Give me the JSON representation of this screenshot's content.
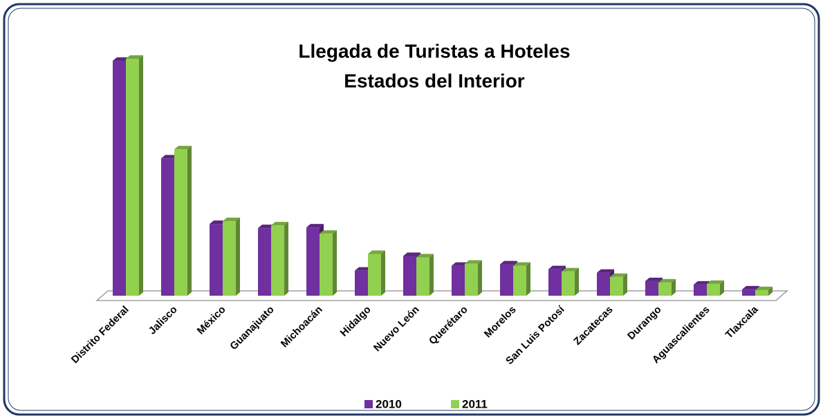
{
  "chart_data": {
    "type": "bar3d",
    "title": [
      "Llegada de Turistas a Hoteles",
      "Estados del Interior"
    ],
    "categories": [
      "Distrito Federal",
      "Jalisco",
      "México",
      "Guanajuato",
      "Michoacán",
      "Hidalgo",
      "Nuevo León",
      "Querétaro",
      "Morelos",
      "San Luis Potosí",
      "Zacatecas",
      "Durango",
      "Aguascalientes",
      "Tlaxcala"
    ],
    "series": [
      {
        "name": "2010",
        "color": "#7030a0",
        "values": [
          337,
          197,
          103,
          97,
          98,
          36,
          57,
          43,
          45,
          38,
          33,
          21,
          16,
          9
        ]
      },
      {
        "name": "2011",
        "color": "#92d050",
        "values": [
          340,
          210,
          107,
          101,
          89,
          60,
          55,
          46,
          43,
          35,
          27,
          19,
          17,
          8
        ]
      }
    ],
    "legend": "bottom"
  }
}
